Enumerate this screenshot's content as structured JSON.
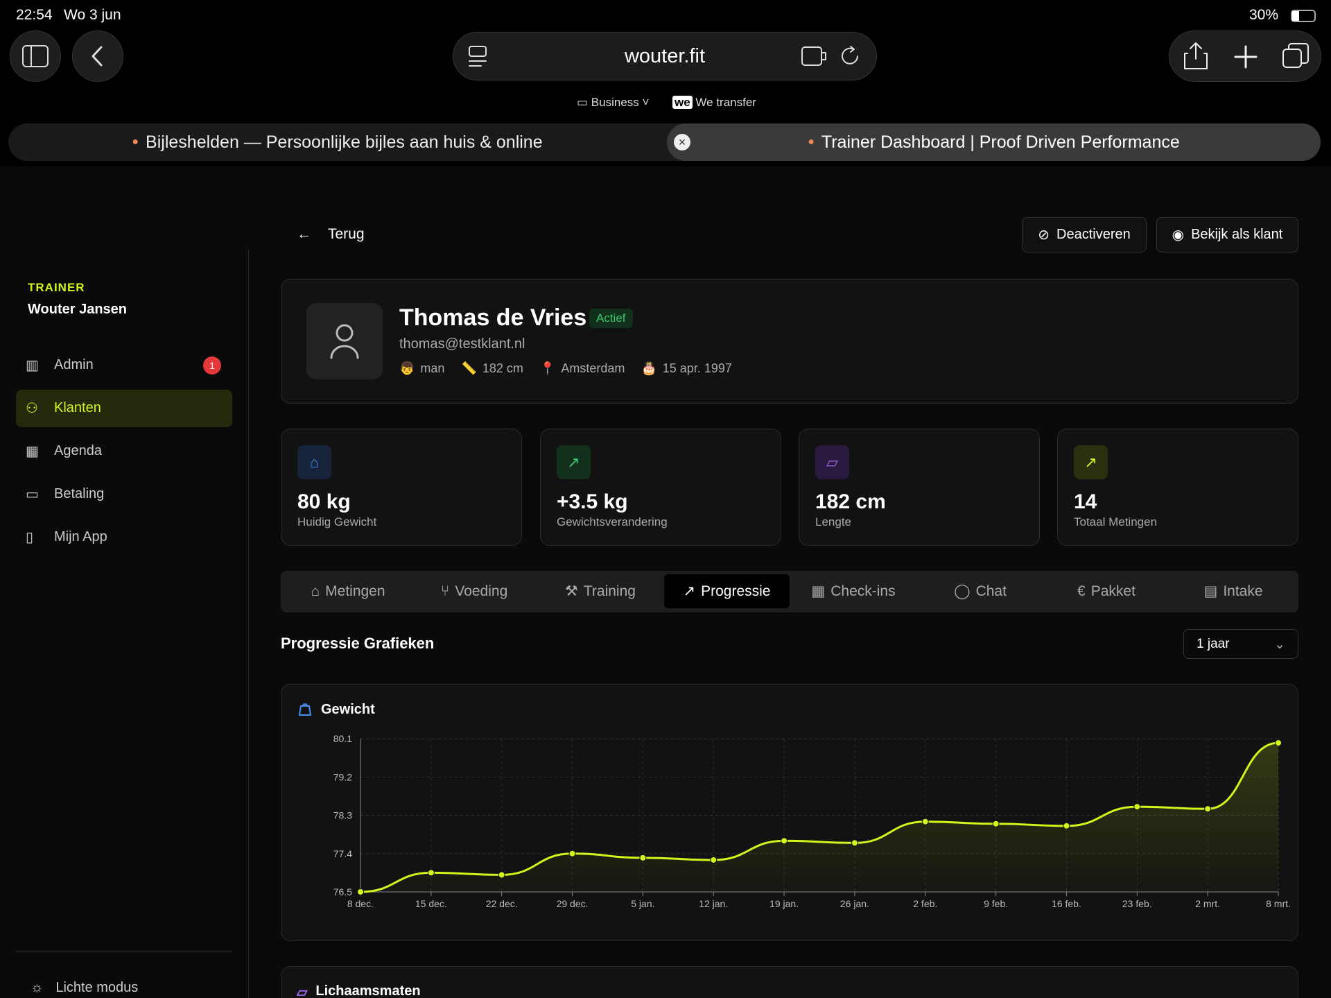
{
  "status": {
    "time": "22:54",
    "date": "Wo 3 jun",
    "battery": "30%"
  },
  "browser": {
    "url": "wouter.fit",
    "bookmarks": [
      "Business",
      "We transfer"
    ],
    "tabs": [
      "Bijleshelden — Persoonlijke bijles aan huis & online",
      "Trainer Dashboard | Proof Driven Performance"
    ]
  },
  "sidebar": {
    "role": "TRAINER",
    "name": "Wouter Jansen",
    "nav": [
      "Admin",
      "Klanten",
      "Agenda",
      "Betaling",
      "Mijn App"
    ],
    "admin_badge": "1",
    "active_nav": 1,
    "footer": "Lichte modus"
  },
  "header": {
    "back": "Terug",
    "actions": [
      "Deactiveren",
      "Bekijk als klant"
    ]
  },
  "profile": {
    "name": "Thomas de Vries",
    "status": "Actief",
    "email": "thomas@testklant.nl",
    "details": [
      "man",
      "182 cm",
      "Amsterdam",
      "15 apr. 1997"
    ]
  },
  "stats": [
    {
      "value": "80 kg",
      "label": "Huidig Gewicht"
    },
    {
      "value": "+3.5 kg",
      "label": "Gewichtsverandering"
    },
    {
      "value": "182 cm",
      "label": "Lengte"
    },
    {
      "value": "14",
      "label": "Totaal Metingen"
    }
  ],
  "tabs": [
    "Metingen",
    "Voeding",
    "Training",
    "Progressie",
    "Check-ins",
    "Chat",
    "Pakket",
    "Intake"
  ],
  "active_tab": 3,
  "progress": {
    "title": "Progressie Grafieken",
    "period": "1 jaar",
    "next_section": "Lichaamsmaten"
  },
  "chart_data": {
    "type": "line",
    "title": "Gewicht",
    "color": "#d4f51c",
    "grid": true,
    "categories": [
      "8 dec.",
      "15 dec.",
      "22 dec.",
      "29 dec.",
      "5 jan.",
      "12 jan.",
      "19 jan.",
      "26 jan.",
      "2 feb.",
      "9 feb.",
      "16 feb.",
      "23 feb.",
      "2 mrt.",
      "8 mrt."
    ],
    "values": [
      76.5,
      76.95,
      76.9,
      77.4,
      77.3,
      77.25,
      77.7,
      77.65,
      78.15,
      78.1,
      78.05,
      78.5,
      78.45,
      80
    ],
    "ylim": [
      76.5,
      80.1
    ],
    "yticks": [
      76.5,
      77.4,
      78.3,
      79.2,
      80.1
    ]
  }
}
